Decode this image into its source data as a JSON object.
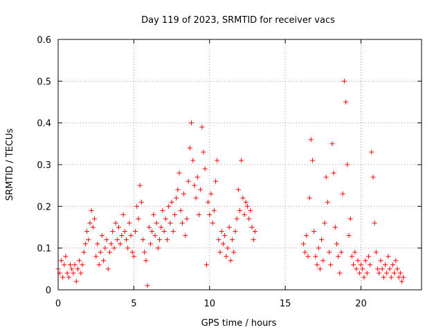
{
  "chart_data": {
    "type": "scatter",
    "title": "Day 119 of 2023, SRMTID for receiver vacs",
    "xlabel": "GPS time / hours",
    "ylabel": "SRMTID / TECUs",
    "xlim": [
      0,
      24
    ],
    "ylim": [
      0,
      0.6
    ],
    "xticks": [
      0,
      5,
      10,
      15,
      20
    ],
    "xtick_labels": [
      "0",
      "5",
      "10",
      "15",
      "20"
    ],
    "yticks": [
      0,
      0.1,
      0.2,
      0.3,
      0.4,
      0.5,
      0.6
    ],
    "ytick_labels": [
      "0",
      "0.1",
      "0.2",
      "0.3",
      "0.4",
      "0.5",
      "0.6"
    ],
    "grid": true,
    "marker": "+",
    "color": "#ff0000",
    "series": [
      {
        "name": "SRMTID",
        "points": [
          [
            0.0,
            0.05
          ],
          [
            0.1,
            0.04
          ],
          [
            0.2,
            0.07
          ],
          [
            0.3,
            0.03
          ],
          [
            0.4,
            0.06
          ],
          [
            0.5,
            0.08
          ],
          [
            0.6,
            0.04
          ],
          [
            0.7,
            0.03
          ],
          [
            0.8,
            0.06
          ],
          [
            0.9,
            0.05
          ],
          [
            1.0,
            0.04
          ],
          [
            1.1,
            0.06
          ],
          [
            1.2,
            0.02
          ],
          [
            1.3,
            0.05
          ],
          [
            1.4,
            0.07
          ],
          [
            1.5,
            0.04
          ],
          [
            1.6,
            0.06
          ],
          [
            1.7,
            0.09
          ],
          [
            1.8,
            0.11
          ],
          [
            1.9,
            0.14
          ],
          [
            2.0,
            0.12
          ],
          [
            2.1,
            0.16
          ],
          [
            2.2,
            0.19
          ],
          [
            2.3,
            0.15
          ],
          [
            2.4,
            0.17
          ],
          [
            2.5,
            0.08
          ],
          [
            2.6,
            0.11
          ],
          [
            2.7,
            0.06
          ],
          [
            2.8,
            0.09
          ],
          [
            2.9,
            0.13
          ],
          [
            3.0,
            0.07
          ],
          [
            3.1,
            0.1
          ],
          [
            3.2,
            0.12
          ],
          [
            3.3,
            0.05
          ],
          [
            3.4,
            0.09
          ],
          [
            3.5,
            0.11
          ],
          [
            3.6,
            0.14
          ],
          [
            3.7,
            0.1
          ],
          [
            3.8,
            0.16
          ],
          [
            3.9,
            0.12
          ],
          [
            4.0,
            0.15
          ],
          [
            4.1,
            0.11
          ],
          [
            4.2,
            0.13
          ],
          [
            4.3,
            0.18
          ],
          [
            4.4,
            0.14
          ],
          [
            4.5,
            0.12
          ],
          [
            4.6,
            0.1
          ],
          [
            4.7,
            0.16
          ],
          [
            4.8,
            0.13
          ],
          [
            4.9,
            0.09
          ],
          [
            5.0,
            0.08
          ],
          [
            5.1,
            0.14
          ],
          [
            5.2,
            0.2
          ],
          [
            5.3,
            0.17
          ],
          [
            5.4,
            0.25
          ],
          [
            5.5,
            0.21
          ],
          [
            5.6,
            0.12
          ],
          [
            5.7,
            0.09
          ],
          [
            5.8,
            0.07
          ],
          [
            5.9,
            0.01
          ],
          [
            6.0,
            0.15
          ],
          [
            6.1,
            0.11
          ],
          [
            6.2,
            0.14
          ],
          [
            6.3,
            0.18
          ],
          [
            6.4,
            0.13
          ],
          [
            6.5,
            0.16
          ],
          [
            6.6,
            0.1
          ],
          [
            6.7,
            0.12
          ],
          [
            6.8,
            0.15
          ],
          [
            6.9,
            0.19
          ],
          [
            7.0,
            0.14
          ],
          [
            7.1,
            0.17
          ],
          [
            7.2,
            0.12
          ],
          [
            7.3,
            0.2
          ],
          [
            7.4,
            0.16
          ],
          [
            7.5,
            0.21
          ],
          [
            7.6,
            0.14
          ],
          [
            7.7,
            0.18
          ],
          [
            7.8,
            0.22
          ],
          [
            7.9,
            0.24
          ],
          [
            8.0,
            0.28
          ],
          [
            8.1,
            0.19
          ],
          [
            8.2,
            0.16
          ],
          [
            8.3,
            0.23
          ],
          [
            8.4,
            0.13
          ],
          [
            8.5,
            0.17
          ],
          [
            8.6,
            0.26
          ],
          [
            8.7,
            0.34
          ],
          [
            8.8,
            0.4
          ],
          [
            8.9,
            0.31
          ],
          [
            9.0,
            0.25
          ],
          [
            9.1,
            0.22
          ],
          [
            9.2,
            0.27
          ],
          [
            9.3,
            0.18
          ],
          [
            9.4,
            0.24
          ],
          [
            9.5,
            0.39
          ],
          [
            9.6,
            0.33
          ],
          [
            9.7,
            0.29
          ],
          [
            9.8,
            0.06
          ],
          [
            9.9,
            0.21
          ],
          [
            10.0,
            0.18
          ],
          [
            10.1,
            0.23
          ],
          [
            10.2,
            0.16
          ],
          [
            10.3,
            0.19
          ],
          [
            10.4,
            0.26
          ],
          [
            10.5,
            0.31
          ],
          [
            10.6,
            0.12
          ],
          [
            10.7,
            0.09
          ],
          [
            10.8,
            0.14
          ],
          [
            10.9,
            0.11
          ],
          [
            11.0,
            0.13
          ],
          [
            11.1,
            0.08
          ],
          [
            11.2,
            0.1
          ],
          [
            11.3,
            0.15
          ],
          [
            11.4,
            0.07
          ],
          [
            11.5,
            0.12
          ],
          [
            11.6,
            0.09
          ],
          [
            11.7,
            0.14
          ],
          [
            11.8,
            0.17
          ],
          [
            11.9,
            0.24
          ],
          [
            12.0,
            0.19
          ],
          [
            12.1,
            0.31
          ],
          [
            12.2,
            0.22
          ],
          [
            12.3,
            0.18
          ],
          [
            12.4,
            0.21
          ],
          [
            12.5,
            0.2
          ],
          [
            12.6,
            0.17
          ],
          [
            12.7,
            0.19
          ],
          [
            12.8,
            0.15
          ],
          [
            12.9,
            0.12
          ],
          [
            13.0,
            0.14
          ],
          [
            16.2,
            0.11
          ],
          [
            16.3,
            0.09
          ],
          [
            16.4,
            0.13
          ],
          [
            16.5,
            0.08
          ],
          [
            16.6,
            0.22
          ],
          [
            16.7,
            0.36
          ],
          [
            16.8,
            0.31
          ],
          [
            16.9,
            0.14
          ],
          [
            17.0,
            0.08
          ],
          [
            17.1,
            0.06
          ],
          [
            17.2,
            0.1
          ],
          [
            17.3,
            0.05
          ],
          [
            17.4,
            0.12
          ],
          [
            17.5,
            0.07
          ],
          [
            17.6,
            0.16
          ],
          [
            17.7,
            0.27
          ],
          [
            17.8,
            0.21
          ],
          [
            17.9,
            0.09
          ],
          [
            18.0,
            0.06
          ],
          [
            18.1,
            0.35
          ],
          [
            18.2,
            0.28
          ],
          [
            18.3,
            0.15
          ],
          [
            18.4,
            0.11
          ],
          [
            18.5,
            0.08
          ],
          [
            18.6,
            0.04
          ],
          [
            18.7,
            0.09
          ],
          [
            18.8,
            0.23
          ],
          [
            18.9,
            0.5
          ],
          [
            19.0,
            0.45
          ],
          [
            19.1,
            0.3
          ],
          [
            19.2,
            0.13
          ],
          [
            19.3,
            0.17
          ],
          [
            19.4,
            0.08
          ],
          [
            19.5,
            0.06
          ],
          [
            19.6,
            0.09
          ],
          [
            19.7,
            0.05
          ],
          [
            19.8,
            0.07
          ],
          [
            19.9,
            0.04
          ],
          [
            20.0,
            0.06
          ],
          [
            20.1,
            0.05
          ],
          [
            20.2,
            0.03
          ],
          [
            20.3,
            0.07
          ],
          [
            20.4,
            0.04
          ],
          [
            20.5,
            0.08
          ],
          [
            20.6,
            0.06
          ],
          [
            20.7,
            0.33
          ],
          [
            20.8,
            0.27
          ],
          [
            20.9,
            0.16
          ],
          [
            21.0,
            0.09
          ],
          [
            21.1,
            0.05
          ],
          [
            21.2,
            0.04
          ],
          [
            21.3,
            0.07
          ],
          [
            21.4,
            0.05
          ],
          [
            21.5,
            0.03
          ],
          [
            21.6,
            0.06
          ],
          [
            21.7,
            0.04
          ],
          [
            21.8,
            0.08
          ],
          [
            21.9,
            0.05
          ],
          [
            22.0,
            0.03
          ],
          [
            22.1,
            0.06
          ],
          [
            22.2,
            0.04
          ],
          [
            22.3,
            0.07
          ],
          [
            22.4,
            0.05
          ],
          [
            22.5,
            0.03
          ],
          [
            22.6,
            0.04
          ],
          [
            22.7,
            0.02
          ],
          [
            22.8,
            0.03
          ]
        ]
      }
    ]
  }
}
